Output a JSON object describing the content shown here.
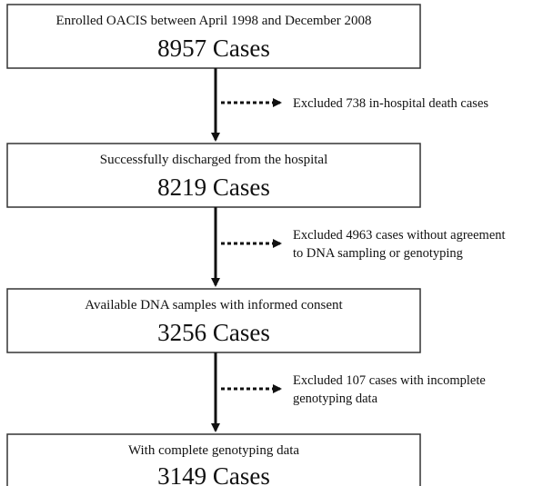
{
  "nodes": [
    {
      "label": "Enrolled OACIS between April 1998 and December 2008",
      "count": "8957 Cases"
    },
    {
      "label": "Successfully discharged from the hospital",
      "count": "8219 Cases"
    },
    {
      "label": "Available DNA samples with informed consent",
      "count": "3256 Cases"
    },
    {
      "label": "With complete genotyping data",
      "count": "3149 Cases"
    }
  ],
  "exclusions": [
    {
      "lines": [
        "Excluded  738 in-hospital death cases"
      ]
    },
    {
      "lines": [
        "Excluded  4963 cases without agreement",
        "to DNA sampling or genotyping"
      ]
    },
    {
      "lines": [
        "Excluded  107 cases with incomplete",
        "genotyping data"
      ]
    }
  ]
}
